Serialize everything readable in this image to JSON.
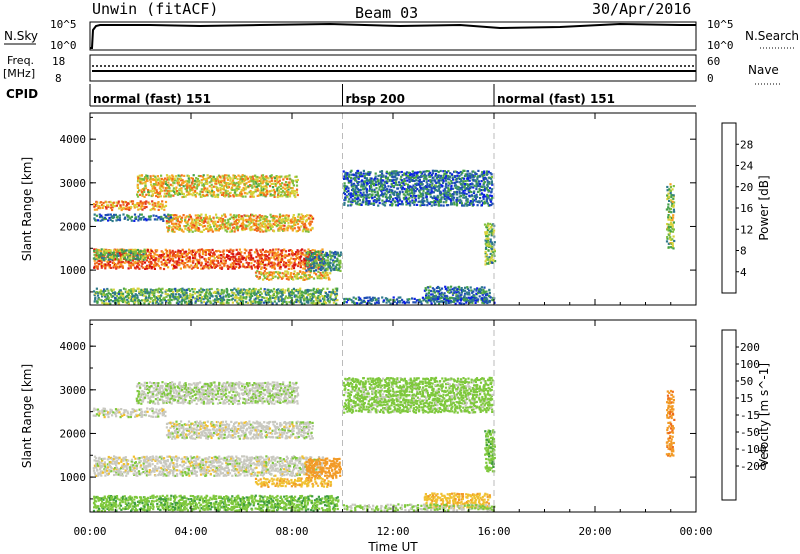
{
  "header": {
    "radar": "Unwin (fitACF)",
    "beam": "Beam 03",
    "date": "30/Apr/2016"
  },
  "strip_labels": {
    "nsky": "N.Sky",
    "nsky_hi": "10^5",
    "nsky_lo": "10^0",
    "freq_line1": "Freq.",
    "freq_line2": "[MHz]",
    "freq_hi": "18",
    "freq_lo": "8",
    "cpid": "CPID",
    "nsearch": "N.Search",
    "nsearch_hi": "10^5",
    "nsearch_lo": "10^0",
    "nave": "Nave",
    "nave_hi": "60",
    "nave_lo": "0"
  },
  "cpid_segments": [
    {
      "label": "normal (fast) 151",
      "start_h": 0,
      "end_h": 10
    },
    {
      "label": "rbsp 200",
      "start_h": 10,
      "end_h": 16
    },
    {
      "label": "normal (fast) 151",
      "start_h": 16,
      "end_h": 24
    }
  ],
  "chart_data": [
    {
      "type": "heatmap",
      "quantity": "Power",
      "xlabel": "",
      "ylabel": "Slant Range [km]",
      "x_ticks": [
        "00:00",
        "04:00",
        "08:00",
        "12:00",
        "16:00",
        "20:00",
        "00:00"
      ],
      "x_range_hours": [
        0,
        24
      ],
      "y_ticks": [
        1000,
        2000,
        3000,
        4000
      ],
      "ylim": [
        200,
        4600
      ],
      "colorbar": {
        "label": "Power [dB]",
        "ticks": [
          4,
          8,
          12,
          16,
          20,
          24,
          28
        ],
        "range": [
          0,
          32
        ],
        "colors": [
          "#0b1ee6",
          "#1f4fb4",
          "#2f7a8a",
          "#43a047",
          "#7fbf3f",
          "#d8d23a",
          "#f7a021",
          "#f26a1b",
          "#e4351a",
          "#d60e0e"
        ]
      },
      "regions": [
        {
          "t0": 0.1,
          "t1": 9.2,
          "r0": 1050,
          "r1": 1500,
          "v": 25
        },
        {
          "t0": 0.1,
          "t1": 2.2,
          "r0": 1250,
          "r1": 1500,
          "v": 13
        },
        {
          "t0": 0.1,
          "t1": 3.0,
          "r0": 2400,
          "r1": 2600,
          "v": 22
        },
        {
          "t0": 3.0,
          "t1": 8.8,
          "r0": 1900,
          "r1": 2300,
          "v": 20
        },
        {
          "t0": 0.1,
          "t1": 3.2,
          "r0": 2150,
          "r1": 2300,
          "v": 7
        },
        {
          "t0": 1.8,
          "t1": 8.2,
          "r0": 2700,
          "r1": 3200,
          "v": 18
        },
        {
          "t0": 6.5,
          "t1": 9.5,
          "r0": 800,
          "r1": 1000,
          "v": 19
        },
        {
          "t0": 8.5,
          "t1": 9.9,
          "r0": 1000,
          "r1": 1450,
          "v": 10
        },
        {
          "t0": 10.0,
          "t1": 15.9,
          "r0": 2500,
          "r1": 3300,
          "v": 7
        },
        {
          "t0": 13.2,
          "t1": 15.8,
          "r0": 300,
          "r1": 650,
          "v": 8
        },
        {
          "t0": 10.0,
          "t1": 16.0,
          "r0": 250,
          "r1": 400,
          "v": 6
        },
        {
          "t0": 15.6,
          "t1": 16.0,
          "r0": 1150,
          "r1": 2100,
          "v": 12
        },
        {
          "t0": 22.8,
          "t1": 23.1,
          "r0": 1500,
          "r1": 3000,
          "v": 14
        },
        {
          "t0": 0.1,
          "t1": 9.8,
          "r0": 250,
          "r1": 600,
          "v": 12
        }
      ]
    },
    {
      "type": "heatmap",
      "quantity": "Velocity",
      "xlabel": "Time UT",
      "ylabel": "Slant Range [km]",
      "x_ticks": [
        "00:00",
        "04:00",
        "08:00",
        "12:00",
        "16:00",
        "20:00",
        "00:00"
      ],
      "x_range_hours": [
        0,
        24
      ],
      "y_ticks": [
        1000,
        2000,
        3000,
        4000
      ],
      "ylim": [
        200,
        4600
      ],
      "colorbar": {
        "label": "Velocity [m s^-1]",
        "ticks": [
          "200",
          "100",
          "50",
          "15",
          "-15",
          "-50",
          "-100",
          "-200"
        ],
        "colors": [
          "#1f3fb0",
          "#2b7a8e",
          "#3e9d3e",
          "#7ec83c",
          "#c9c9c0",
          "#f0c030",
          "#f29a26",
          "#ee6a1c",
          "#e03a18",
          "#d60e0e"
        ]
      },
      "regions": [
        {
          "t0": 0.1,
          "t1": 9.2,
          "r0": 1050,
          "r1": 1500,
          "v": 0
        },
        {
          "t0": 3.0,
          "t1": 8.8,
          "r0": 1900,
          "r1": 2300,
          "v": 0
        },
        {
          "t0": 0.1,
          "t1": 3.0,
          "r0": 2400,
          "r1": 2600,
          "v": 0
        },
        {
          "t0": 1.8,
          "t1": 8.2,
          "r0": 2700,
          "r1": 3200,
          "v": 10
        },
        {
          "t0": 8.5,
          "t1": 9.9,
          "r0": 1000,
          "r1": 1450,
          "v": -80
        },
        {
          "t0": 6.5,
          "t1": 9.5,
          "r0": 800,
          "r1": 1000,
          "v": -40
        },
        {
          "t0": 10.0,
          "t1": 15.9,
          "r0": 2500,
          "r1": 3300,
          "v": 30
        },
        {
          "t0": 13.2,
          "t1": 15.8,
          "r0": 300,
          "r1": 650,
          "v": -40
        },
        {
          "t0": 10.0,
          "t1": 16.0,
          "r0": 250,
          "r1": 400,
          "v": 20
        },
        {
          "t0": 15.6,
          "t1": 16.0,
          "r0": 1150,
          "r1": 2100,
          "v": 40
        },
        {
          "t0": 22.8,
          "t1": 23.1,
          "r0": 1500,
          "r1": 3000,
          "v": -90
        },
        {
          "t0": 0.1,
          "t1": 9.8,
          "r0": 250,
          "r1": 600,
          "v": 40
        }
      ]
    }
  ]
}
